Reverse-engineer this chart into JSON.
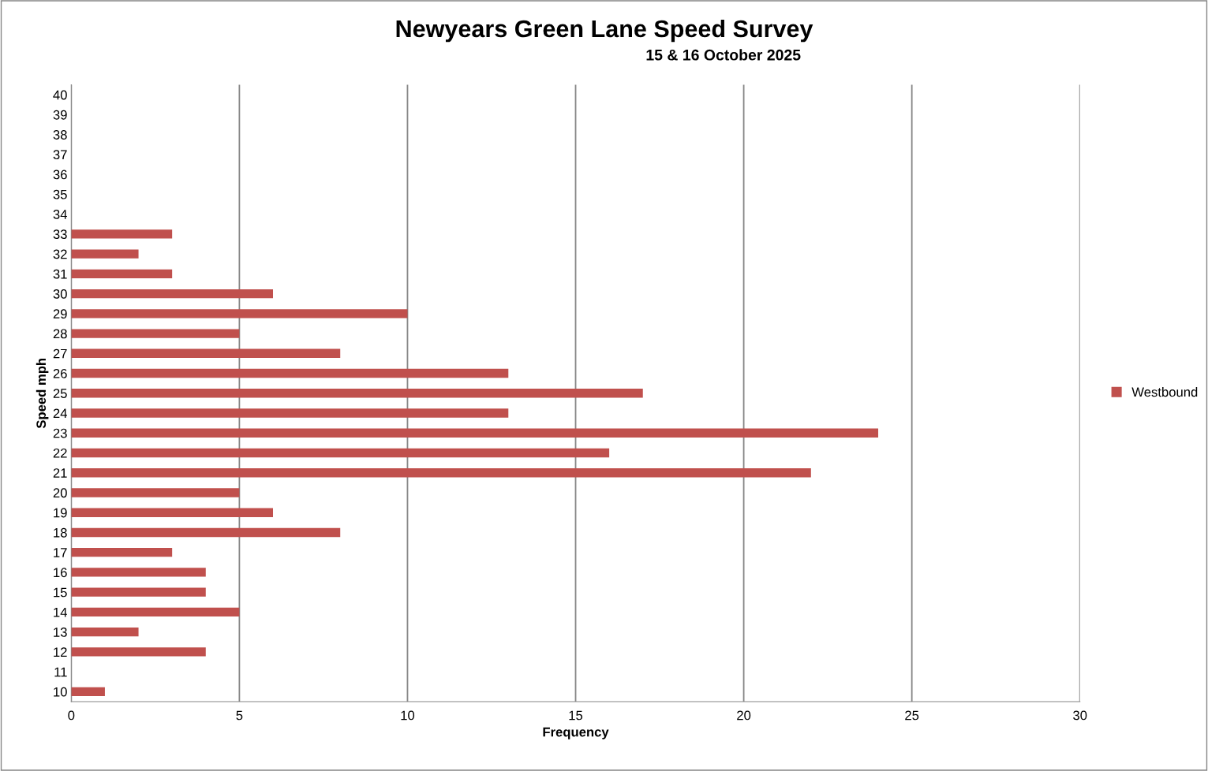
{
  "chart_data": {
    "type": "bar",
    "orientation": "horizontal",
    "title": "Newyears Green Lane Speed Survey",
    "subtitle": "15 & 16 October 2025",
    "xlabel": "Frequency",
    "ylabel": "Speed mph",
    "categories": [
      "40",
      "39",
      "38",
      "37",
      "36",
      "35",
      "34",
      "33",
      "32",
      "31",
      "30",
      "29",
      "28",
      "27",
      "26",
      "25",
      "24",
      "23",
      "22",
      "21",
      "20",
      "19",
      "18",
      "17",
      "16",
      "15",
      "14",
      "13",
      "12",
      "11",
      "10"
    ],
    "series": [
      {
        "name": "Westbound",
        "color": "#c0504d",
        "values": [
          0,
          0,
          0,
          0,
          0,
          0,
          0,
          3,
          2,
          3,
          6,
          10,
          5,
          8,
          13,
          17,
          13,
          24,
          16,
          22,
          5,
          6,
          8,
          3,
          4,
          4,
          5,
          2,
          4,
          0,
          1
        ]
      }
    ],
    "xlim": [
      0,
      30
    ],
    "xticks": [
      0,
      5,
      10,
      15,
      20,
      25,
      30
    ],
    "grid": "x",
    "legend": "right"
  }
}
